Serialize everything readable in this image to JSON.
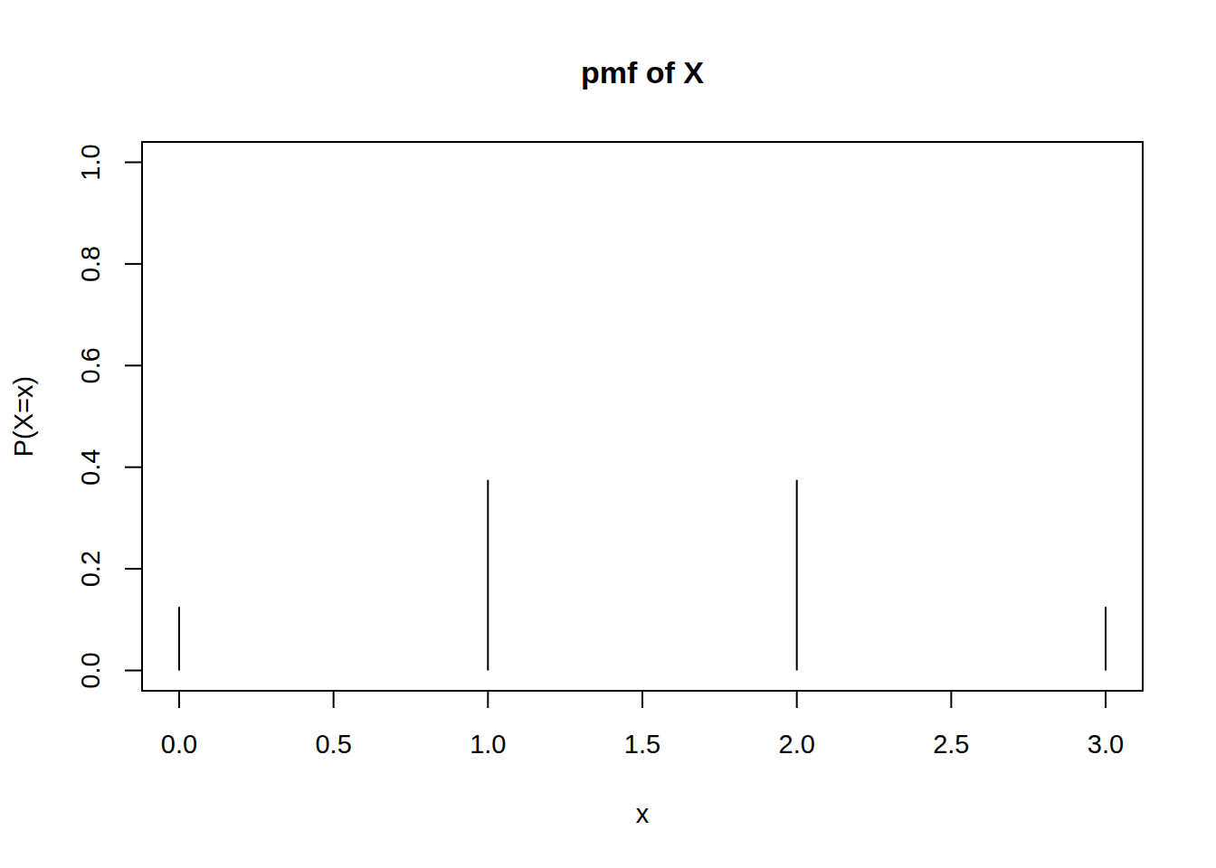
{
  "chart_data": {
    "type": "stem",
    "title": "pmf of X",
    "x_label": "x",
    "y_label": "P(X=x)",
    "x": [
      0,
      1,
      2,
      3
    ],
    "values": [
      0.125,
      0.375,
      0.375,
      0.125
    ],
    "color": "#000000",
    "xlim": [
      -0.12,
      3.12
    ],
    "xticks": [
      {
        "value": 0,
        "label": "0.0"
      },
      {
        "value": 0.5,
        "label": "0.5"
      },
      {
        "value": 1,
        "label": "1.0"
      },
      {
        "value": 1.5,
        "label": "1.5"
      },
      {
        "value": 2,
        "label": "2.0"
      },
      {
        "value": 2.5,
        "label": "2.5"
      },
      {
        "value": 3,
        "label": "3.0"
      }
    ],
    "ylim": [
      -0.04,
      1.04
    ],
    "yticks": [
      {
        "value": 0,
        "label": "0.0"
      },
      {
        "value": 0.2,
        "label": "0.2"
      },
      {
        "value": 0.4,
        "label": "0.4"
      },
      {
        "value": 0.6,
        "label": "0.6"
      },
      {
        "value": 0.8,
        "label": "0.8"
      },
      {
        "value": 1,
        "label": "1.0"
      }
    ],
    "grid": false
  }
}
